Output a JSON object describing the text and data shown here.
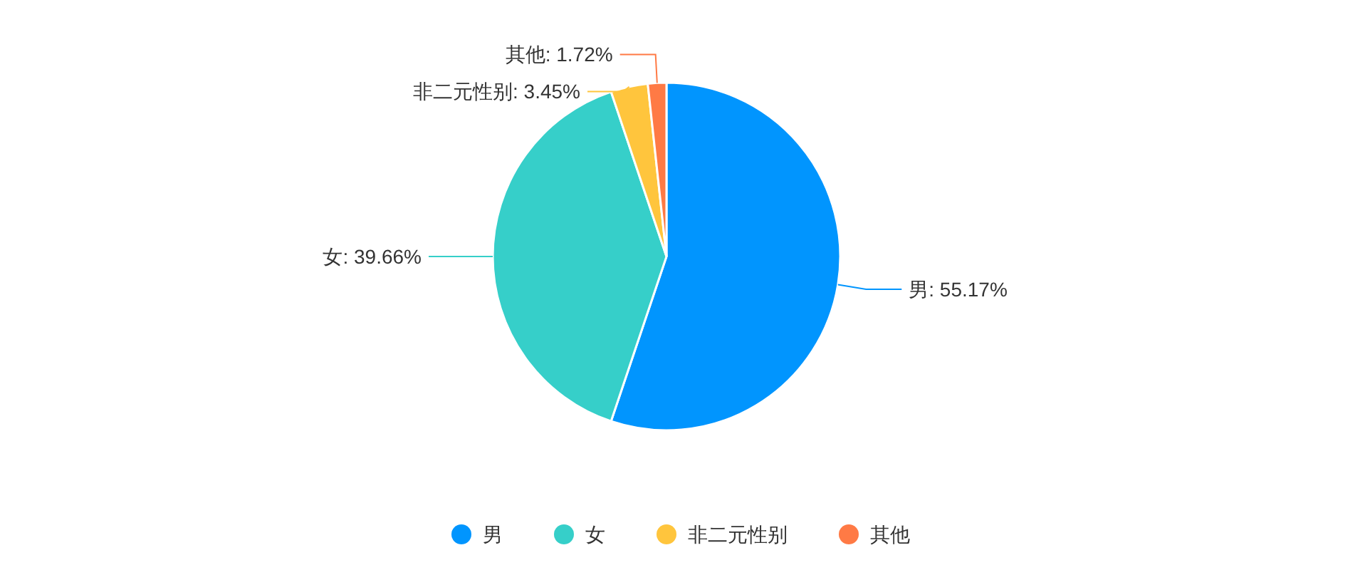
{
  "chart_data": {
    "type": "pie",
    "categories": [
      "男",
      "女",
      "非二元性别",
      "其他"
    ],
    "values": [
      55.17,
      39.66,
      3.45,
      1.72
    ],
    "colors": [
      "#0195fe",
      "#36cfc9",
      "#ffc53d",
      "#ff7a45"
    ],
    "value_labels": [
      "男: 55.17%",
      "女: 39.66%",
      "非二元性别: 3.45%",
      "其他: 1.72%"
    ],
    "legend": "bottom"
  }
}
